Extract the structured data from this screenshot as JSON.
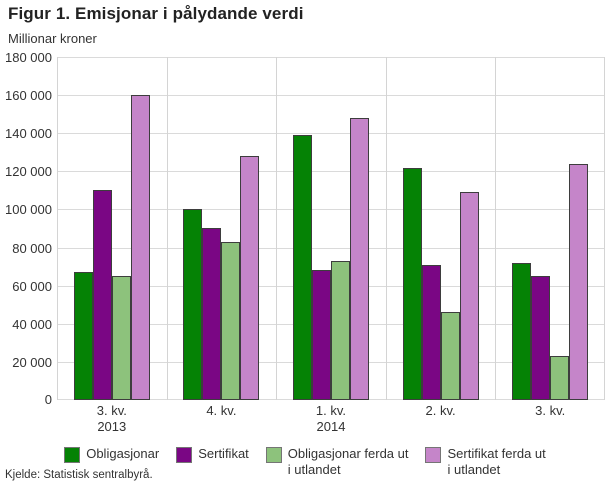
{
  "footer": {
    "source": "Kjelde: Statistisk sentralbyrå."
  },
  "chart_data": {
    "type": "bar",
    "title": "Figur 1. Emisjonar i pålydande verdi",
    "ylabel": "Millionar kroner",
    "xlabel": "",
    "ylim": [
      0,
      180000
    ],
    "ytick_step": 20000,
    "ytick_labels": [
      "0",
      "20 000",
      "40 000",
      "60 000",
      "80 000",
      "100 000",
      "120 000",
      "140 000",
      "160 000",
      "180 000"
    ],
    "grid": true,
    "legend_position": "bottom",
    "categories": [
      "3. kv. 2013",
      "4. kv.",
      "1. kv. 2014",
      "2. kv.",
      "3. kv."
    ],
    "category_label_lines": [
      [
        "3. kv.",
        "2013"
      ],
      [
        "4. kv."
      ],
      [
        "1. kv.",
        "2014"
      ],
      [
        "2. kv."
      ],
      [
        "3. kv."
      ]
    ],
    "series": [
      {
        "name": "Obligasjonar",
        "legend_lines": [
          "Obligasjonar"
        ],
        "color": "#058205",
        "values": [
          67000,
          100000,
          139000,
          122000,
          72000
        ]
      },
      {
        "name": "Sertifikat",
        "legend_lines": [
          "Sertifikat"
        ],
        "color": "#7a0684",
        "values": [
          110000,
          90000,
          68000,
          71000,
          65000
        ]
      },
      {
        "name": "Obligasjonar ferda ut i utlandet",
        "legend_lines": [
          "Obligasjonar ferda ut",
          "i utlandet"
        ],
        "color": "#8dc27c",
        "values": [
          65000,
          83000,
          73000,
          46000,
          23000
        ]
      },
      {
        "name": "Sertifikat ferda ut i utlandet",
        "legend_lines": [
          "Sertifikat ferda ut",
          "i utlandet"
        ],
        "color": "#c585c9",
        "values": [
          160000,
          128000,
          148000,
          109000,
          124000
        ]
      }
    ],
    "colors": {
      "bar_border": "#3d3d3d",
      "gridline": "#dadada",
      "text": "#333333",
      "title_text": "#222222"
    }
  }
}
